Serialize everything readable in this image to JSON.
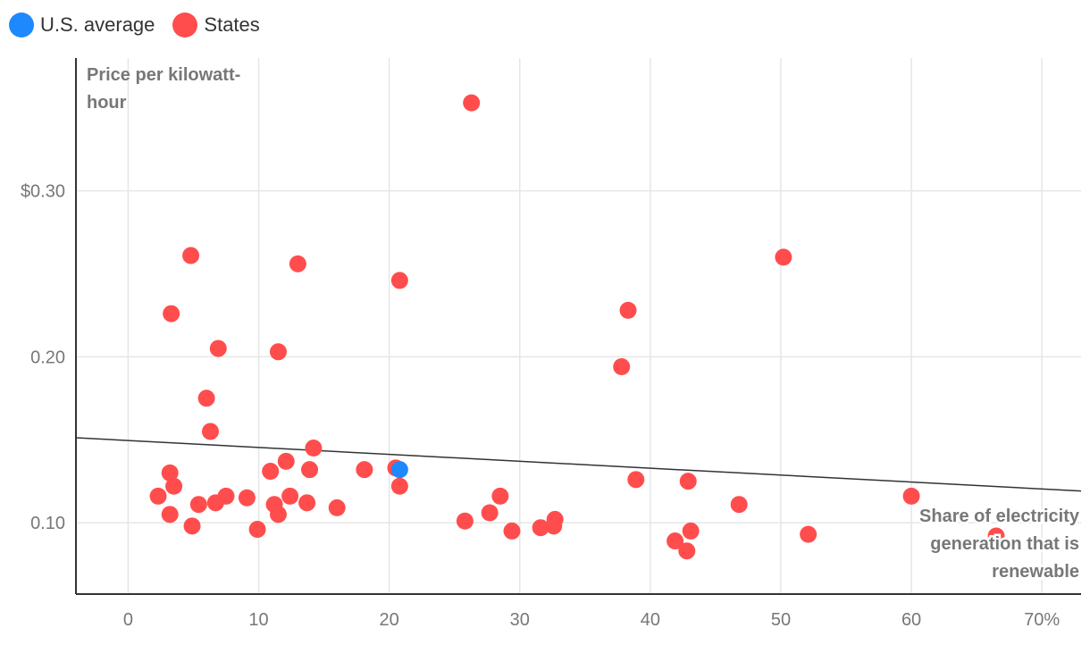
{
  "chart_data": {
    "type": "scatter",
    "xlabel": "Share of electricity generation that is renewable",
    "xlabel_lines": [
      "Share of electricity",
      "generation that is",
      "renewable"
    ],
    "ylabel": "Price per kilowatt-hour",
    "ylabel_lines": [
      "Price per kilowatt-",
      "hour"
    ],
    "xlim": [
      -4,
      73
    ],
    "ylim": [
      0.057,
      0.38
    ],
    "x_ticks": [
      0,
      10,
      20,
      30,
      40,
      50,
      60,
      70
    ],
    "x_tick_labels": [
      "0",
      "10",
      "20",
      "30",
      "40",
      "50",
      "60",
      "70%"
    ],
    "y_ticks": [
      0.1,
      0.2,
      0.3
    ],
    "y_tick_labels": [
      "0.10",
      "0.20",
      "$0.30"
    ],
    "grid": true,
    "legend_position": "top-left",
    "colors": {
      "states": "#ff4d4d",
      "us_average": "#1e88ff",
      "trend": "#333333",
      "grid": "#e6e6e6",
      "axis": "#333333"
    },
    "series": [
      {
        "name": "U.S. average",
        "color": "#1e88ff",
        "points": [
          [
            20.8,
            0.132
          ]
        ]
      },
      {
        "name": "States",
        "color": "#ff4d4d",
        "points": [
          [
            26.3,
            0.353
          ],
          [
            4.8,
            0.261
          ],
          [
            13.0,
            0.256
          ],
          [
            20.8,
            0.246
          ],
          [
            50.2,
            0.26
          ],
          [
            3.3,
            0.226
          ],
          [
            38.3,
            0.228
          ],
          [
            6.9,
            0.205
          ],
          [
            11.5,
            0.203
          ],
          [
            37.8,
            0.194
          ],
          [
            6.0,
            0.175
          ],
          [
            6.3,
            0.155
          ],
          [
            14.2,
            0.145
          ],
          [
            12.1,
            0.137
          ],
          [
            3.2,
            0.13
          ],
          [
            10.9,
            0.131
          ],
          [
            13.9,
            0.132
          ],
          [
            18.1,
            0.132
          ],
          [
            20.5,
            0.133
          ],
          [
            20.8,
            0.122
          ],
          [
            3.5,
            0.122
          ],
          [
            2.3,
            0.116
          ],
          [
            5.4,
            0.111
          ],
          [
            6.7,
            0.112
          ],
          [
            7.5,
            0.116
          ],
          [
            9.1,
            0.115
          ],
          [
            11.2,
            0.111
          ],
          [
            12.4,
            0.116
          ],
          [
            13.7,
            0.112
          ],
          [
            16.0,
            0.109
          ],
          [
            3.2,
            0.105
          ],
          [
            11.5,
            0.105
          ],
          [
            4.9,
            0.098
          ],
          [
            9.9,
            0.096
          ],
          [
            25.8,
            0.101
          ],
          [
            27.7,
            0.106
          ],
          [
            28.5,
            0.116
          ],
          [
            29.4,
            0.095
          ],
          [
            31.6,
            0.097
          ],
          [
            32.6,
            0.098
          ],
          [
            32.7,
            0.102
          ],
          [
            38.9,
            0.126
          ],
          [
            42.9,
            0.125
          ],
          [
            46.8,
            0.111
          ],
          [
            41.9,
            0.089
          ],
          [
            43.1,
            0.095
          ],
          [
            42.8,
            0.083
          ],
          [
            52.1,
            0.093
          ],
          [
            60.0,
            0.116
          ],
          [
            66.5,
            0.092
          ]
        ]
      }
    ],
    "trend_line": {
      "x": [
        -4,
        73
      ],
      "y": [
        0.1512,
        0.1191
      ]
    }
  }
}
